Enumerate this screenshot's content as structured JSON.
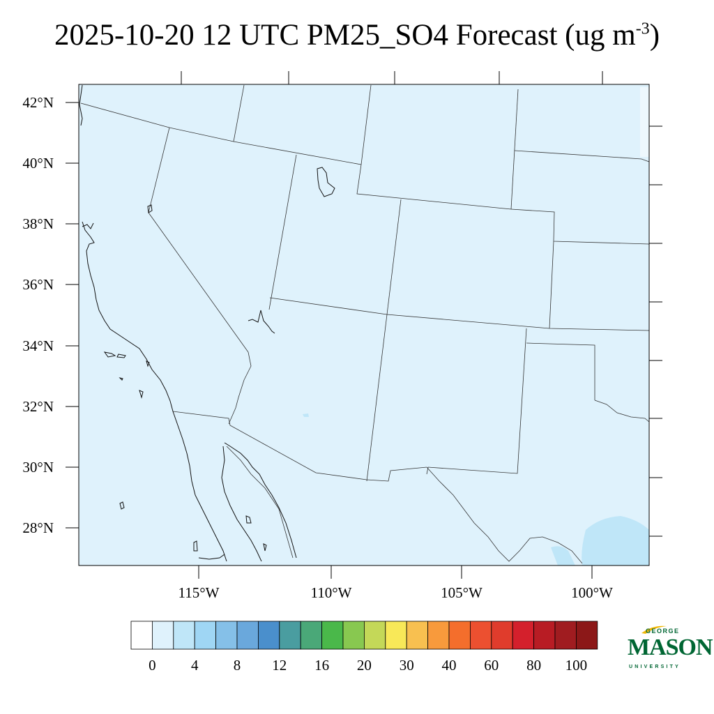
{
  "title": {
    "main": "2025-10-20 12 UTC PM25_SO4 Forecast (ug m",
    "sup": "-3",
    "close": ")"
  },
  "map": {
    "lat_labels": [
      "42°N",
      "40°N",
      "38°N",
      "36°N",
      "34°N",
      "32°N",
      "30°N",
      "28°N"
    ],
    "lon_labels": [
      "115°W",
      "110°W",
      "105°W",
      "100°W"
    ],
    "base_color": "#dff2fc"
  },
  "colorbar": {
    "colors": [
      "#ffffff",
      "#dff2fc",
      "#bfe6f8",
      "#9fd6f4",
      "#85c0e8",
      "#6aa8dc",
      "#4a8fcc",
      "#4a9da0",
      "#4aa878",
      "#4ab84a",
      "#88c850",
      "#c4d858",
      "#f8e858",
      "#f8c050",
      "#f89a3c",
      "#f46e2c",
      "#ec5030",
      "#e03c2c",
      "#d4202c",
      "#b81c24",
      "#a01c20",
      "#8c1818"
    ],
    "labels": [
      "0",
      "4",
      "8",
      "12",
      "16",
      "20",
      "30",
      "40",
      "60",
      "80",
      "100"
    ]
  },
  "logo": {
    "george": "GEORGE",
    "mason": "MASON",
    "university": "UNIVERSITY",
    "color": "#006633",
    "accent": "#f2b705"
  }
}
